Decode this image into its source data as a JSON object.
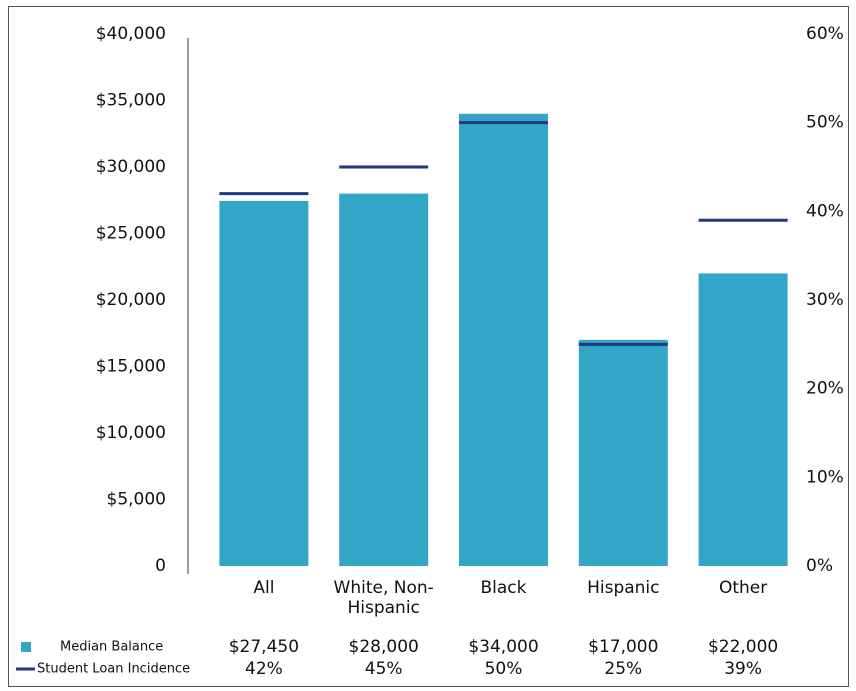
{
  "chart_data": {
    "type": "bar",
    "categories": [
      "All",
      "White, Non-Hispanic",
      "Black",
      "Hispanic",
      "Other"
    ],
    "series": [
      {
        "name": "Median Balance",
        "color": "#33a6c7",
        "values": [
          27450,
          28000,
          34000,
          17000,
          22000
        ],
        "value_labels": [
          "$27,450",
          "$28,000",
          "$34,000",
          "$17,000",
          "$22,000"
        ]
      },
      {
        "name": "Student Loan Incidence",
        "color": "#1f3a7c",
        "axis": "y2",
        "values": [
          42,
          45,
          50,
          25,
          39
        ],
        "value_labels": [
          "42%",
          "45%",
          "50%",
          "25%",
          "39%"
        ]
      }
    ],
    "ylim": [
      0,
      40000
    ],
    "yticks": [
      0,
      {
        "value": 5000,
        "label": "$5,000"
      },
      {
        "value": 10000,
        "label": "$10,000"
      },
      {
        "value": 15000,
        "label": "$15,000"
      },
      {
        "value": 20000,
        "label": "$20,000"
      },
      {
        "value": 25000,
        "label": "$25,000"
      },
      {
        "value": 30000,
        "label": "$30,000"
      },
      {
        "value": 35000,
        "label": "$35,000"
      },
      {
        "value": 40000,
        "label": "$40,000"
      }
    ],
    "y2lim": [
      0,
      60
    ],
    "y2ticks": [
      {
        "value": 0,
        "label": "0%"
      },
      {
        "value": 10,
        "label": "10%"
      },
      {
        "value": 20,
        "label": "20%"
      },
      {
        "value": 30,
        "label": "30%"
      },
      {
        "value": 40,
        "label": "40%"
      },
      {
        "value": 50,
        "label": "50%"
      },
      {
        "value": 60,
        "label": "60%"
      }
    ],
    "grid": false
  }
}
